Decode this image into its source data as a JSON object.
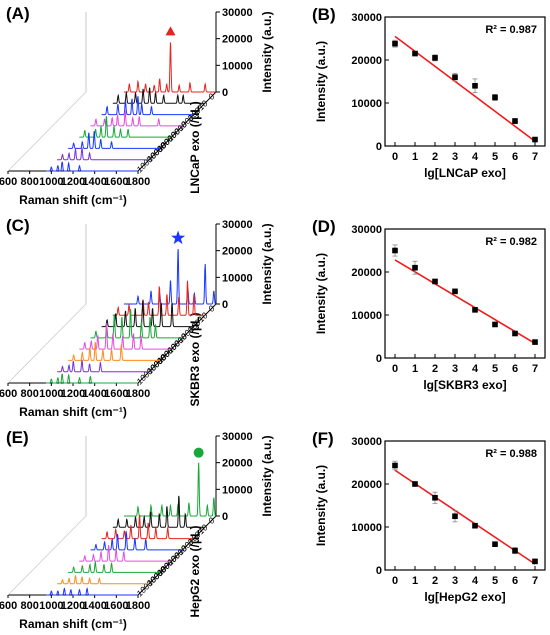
{
  "chart_data": [
    {
      "panel": "(A)",
      "type": "line",
      "xlabel": "Raman shift (cm⁻¹)",
      "ylabel": "Intensity (a.u.)",
      "zlabel": "LNCaP exo (/μL)",
      "x_ticks": [
        "600",
        "800",
        "1000",
        "1200",
        "1400",
        "1600",
        "1800"
      ],
      "xlim": [
        600,
        1800
      ],
      "y_ticks": [
        "0",
        "10000",
        "20000",
        "30000"
      ],
      "ylim": [
        0,
        30000
      ],
      "series": [
        {
          "name": "0",
          "color": "#e8231f",
          "peaks": [
            [
              1000,
              3000
            ],
            [
              1080,
              4000
            ],
            [
              1150,
              3000
            ],
            [
              1230,
              2500
            ],
            [
              1280,
              5000
            ],
            [
              1345,
              3000
            ],
            [
              1380,
              19000
            ],
            [
              1460,
              2500
            ],
            [
              1560,
              3500
            ],
            [
              1700,
              3000
            ]
          ]
        },
        {
          "name": "10",
          "color": "#111111",
          "peaks": [
            [
              1000,
              3000
            ],
            [
              1075,
              4000
            ],
            [
              1160,
              4000
            ],
            [
              1230,
              5500
            ],
            [
              1290,
              6000
            ],
            [
              1345,
              4000
            ],
            [
              1420,
              3000
            ],
            [
              1550,
              3000
            ],
            [
              1600,
              3000
            ]
          ]
        },
        {
          "name": "100",
          "color": "#1a36ff",
          "peaks": [
            [
              1000,
              3000
            ],
            [
              1100,
              4000
            ],
            [
              1170,
              5000
            ],
            [
              1230,
              6000
            ],
            [
              1285,
              7000
            ],
            [
              1320,
              4000
            ],
            [
              1410,
              3000
            ]
          ]
        },
        {
          "name": "1000",
          "color": "#e24de0",
          "peaks": [
            [
              1000,
              2500
            ],
            [
              1080,
              2500
            ],
            [
              1150,
              3000
            ],
            [
              1200,
              4000
            ],
            [
              1270,
              5500
            ],
            [
              1340,
              3000
            ],
            [
              1400,
              3500
            ],
            [
              1580,
              2500
            ]
          ]
        },
        {
          "name": "10000",
          "color": "#18a83a",
          "peaks": [
            [
              1000,
              2500
            ],
            [
              1100,
              3000
            ],
            [
              1150,
              4000
            ],
            [
              1200,
              8000
            ],
            [
              1270,
              4000
            ],
            [
              1330,
              3000
            ],
            [
              1400,
              3000
            ]
          ]
        },
        {
          "name": "100000",
          "color": "#1a36ff",
          "peaks": [
            [
              1000,
              2000
            ],
            [
              1080,
              2500
            ],
            [
              1140,
              6000
            ],
            [
              1190,
              6500
            ],
            [
              1250,
              3500
            ],
            [
              1350,
              2500
            ]
          ]
        },
        {
          "name": "1000000",
          "color": "#7b2fd8",
          "peaks": [
            [
              1000,
              2000
            ],
            [
              1060,
              2500
            ],
            [
              1120,
              4000
            ],
            [
              1180,
              4500
            ],
            [
              1250,
              2500
            ]
          ]
        },
        {
          "name": "10000000",
          "color": "#1a36ff",
          "peaks": [
            [
              1000,
              1500
            ],
            [
              1060,
              2000
            ],
            [
              1100,
              3500
            ],
            [
              1160,
              3000
            ],
            [
              1260,
              2000
            ]
          ]
        }
      ],
      "marker": {
        "shape": "triangle",
        "color": "#e8231f",
        "x": 1380
      }
    },
    {
      "panel": "(B)",
      "type": "scatter",
      "xlabel": "lg[LNCaP exo]",
      "ylabel": "Intensity (a.u.)",
      "annotation": "R² = 0.987",
      "x_ticks": [
        "0",
        "1",
        "2",
        "3",
        "4",
        "5",
        "6",
        "7"
      ],
      "xlim": [
        -0.5,
        7.5
      ],
      "y_ticks": [
        "0",
        "10000",
        "20000",
        "30000"
      ],
      "ylim": [
        0,
        30000
      ],
      "x": [
        0,
        1,
        2,
        3,
        4,
        5,
        6,
        7
      ],
      "y": [
        23800,
        21500,
        20500,
        16000,
        14000,
        11300,
        5800,
        1500
      ],
      "err": [
        800,
        500,
        700,
        900,
        1600,
        700,
        600,
        300
      ],
      "fit": {
        "x": [
          0,
          7
        ],
        "y": [
          25500,
          1100
        ]
      }
    },
    {
      "panel": "(C)",
      "type": "line",
      "xlabel": "Raman shift (cm⁻¹)",
      "ylabel": "Intensity (a.u.)",
      "zlabel": "SKBR3 exo (/μL)",
      "x_ticks": [
        "600",
        "800",
        "1000",
        "1200",
        "1400",
        "1600",
        "1800"
      ],
      "xlim": [
        600,
        1800
      ],
      "y_ticks": [
        "0",
        "10000",
        "20000",
        "30000"
      ],
      "ylim": [
        0,
        30000
      ],
      "series": [
        {
          "name": "0",
          "color": "#1a36ff",
          "peaks": [
            [
              1080,
              3000
            ],
            [
              1200,
              5000
            ],
            [
              1280,
              4000
            ],
            [
              1380,
              9000
            ],
            [
              1450,
              21000
            ],
            [
              1540,
              6000
            ],
            [
              1600,
              4000
            ],
            [
              1700,
              15000
            ],
            [
              1780,
              5000
            ]
          ]
        },
        {
          "name": "10",
          "color": "#e8231f",
          "peaks": [
            [
              1000,
              3000
            ],
            [
              1100,
              4000
            ],
            [
              1230,
              6000
            ],
            [
              1280,
              5000
            ],
            [
              1380,
              11000
            ],
            [
              1450,
              8000
            ],
            [
              1560,
              7000
            ],
            [
              1640,
              13000
            ],
            [
              1700,
              8000
            ]
          ]
        },
        {
          "name": "100",
          "color": "#111111",
          "peaks": [
            [
              1000,
              2500
            ],
            [
              1080,
              5000
            ],
            [
              1170,
              6000
            ],
            [
              1260,
              7000
            ],
            [
              1330,
              10000
            ],
            [
              1420,
              7000
            ],
            [
              1500,
              9000
            ],
            [
              1600,
              9000
            ]
          ]
        },
        {
          "name": "1000",
          "color": "#18a83a",
          "peaks": [
            [
              1000,
              2500
            ],
            [
              1100,
              4000
            ],
            [
              1170,
              9000
            ],
            [
              1240,
              8000
            ],
            [
              1320,
              11000
            ],
            [
              1420,
              6000
            ],
            [
              1500,
              8000
            ],
            [
              1550,
              5000
            ]
          ]
        },
        {
          "name": "10000",
          "color": "#e24de0",
          "peaks": [
            [
              1000,
              2500
            ],
            [
              1060,
              3000
            ],
            [
              1120,
              5000
            ],
            [
              1200,
              10000
            ],
            [
              1260,
              6000
            ],
            [
              1350,
              5000
            ],
            [
              1450,
              6000
            ],
            [
              1520,
              5000
            ]
          ]
        },
        {
          "name": "100000",
          "color": "#ff8a1a",
          "peaks": [
            [
              1000,
              2000
            ],
            [
              1080,
              3000
            ],
            [
              1150,
              5000
            ],
            [
              1200,
              7000
            ],
            [
              1270,
              4000
            ],
            [
              1350,
              4000
            ],
            [
              1440,
              6000
            ]
          ]
        },
        {
          "name": "1000000",
          "color": "#7b2fd8",
          "peaks": [
            [
              1000,
              2000
            ],
            [
              1060,
              2500
            ],
            [
              1100,
              4000
            ],
            [
              1180,
              4500
            ],
            [
              1250,
              3000
            ],
            [
              1350,
              3500
            ]
          ]
        },
        {
          "name": "10000000",
          "color": "#18a83a",
          "peaks": [
            [
              1000,
              1500
            ],
            [
              1060,
              2000
            ],
            [
              1100,
              3500
            ],
            [
              1160,
              3000
            ],
            [
              1260,
              2000
            ],
            [
              1360,
              2500
            ]
          ]
        }
      ],
      "marker": {
        "shape": "star",
        "color": "#1a36ff",
        "x": 1450
      }
    },
    {
      "panel": "(D)",
      "type": "scatter",
      "xlabel": "lg[SKBR3 exo]",
      "ylabel": "Intensity (a.u.)",
      "annotation": "R² = 0.982",
      "x_ticks": [
        "0",
        "1",
        "2",
        "3",
        "4",
        "5",
        "6",
        "7"
      ],
      "xlim": [
        -0.5,
        7.5
      ],
      "y_ticks": [
        "0",
        "10000",
        "20000",
        "30000"
      ],
      "ylim": [
        0,
        30000
      ],
      "x": [
        0,
        1,
        2,
        3,
        4,
        5,
        6,
        7
      ],
      "y": [
        25000,
        21000,
        17800,
        15500,
        11200,
        7800,
        5700,
        3700
      ],
      "err": [
        1300,
        1500,
        400,
        400,
        400,
        300,
        300,
        200
      ],
      "fit": {
        "x": [
          0,
          7
        ],
        "y": [
          22800,
          3400
        ]
      }
    },
    {
      "panel": "(E)",
      "type": "line",
      "xlabel": "Raman shift (cm⁻¹)",
      "ylabel": "Intensity (a.u.)",
      "zlabel": "HepG2 exo (/μL)",
      "x_ticks": [
        "600",
        "800",
        "1000",
        "1200",
        "1400",
        "1600",
        "1800"
      ],
      "xlim": [
        600,
        1800
      ],
      "y_ticks": [
        "0",
        "10000",
        "20000",
        "30000"
      ],
      "ylim": [
        0,
        30000
      ],
      "series": [
        {
          "name": "0",
          "color": "#18a83a",
          "peaks": [
            [
              1080,
              3500
            ],
            [
              1200,
              4000
            ],
            [
              1300,
              4000
            ],
            [
              1380,
              4000
            ],
            [
              1450,
              4500
            ],
            [
              1550,
              5000
            ],
            [
              1640,
              20000
            ],
            [
              1720,
              4000
            ],
            [
              1780,
              7000
            ]
          ]
        },
        {
          "name": "10",
          "color": "#111111",
          "peaks": [
            [
              1000,
              3000
            ],
            [
              1080,
              3000
            ],
            [
              1160,
              4000
            ],
            [
              1240,
              4000
            ],
            [
              1300,
              6000
            ],
            [
              1380,
              5000
            ],
            [
              1450,
              8000
            ],
            [
              1560,
              12000
            ],
            [
              1620,
              5000
            ]
          ]
        },
        {
          "name": "100",
          "color": "#e8231f",
          "peaks": [
            [
              1000,
              2500
            ],
            [
              1080,
              3500
            ],
            [
              1160,
              3000
            ],
            [
              1220,
              5000
            ],
            [
              1300,
              9000
            ],
            [
              1380,
              6000
            ],
            [
              1450,
              4000
            ],
            [
              1560,
              4000
            ]
          ]
        },
        {
          "name": "1000",
          "color": "#1a36ff",
          "peaks": [
            [
              1000,
              2000
            ],
            [
              1080,
              3000
            ],
            [
              1150,
              4000
            ],
            [
              1200,
              6000
            ],
            [
              1280,
              7000
            ],
            [
              1360,
              4500
            ],
            [
              1460,
              4000
            ]
          ]
        },
        {
          "name": "10000",
          "color": "#e24de0",
          "peaks": [
            [
              1000,
              2000
            ],
            [
              1080,
              2500
            ],
            [
              1150,
              3500
            ],
            [
              1220,
              6000
            ],
            [
              1290,
              4500
            ],
            [
              1360,
              3500
            ]
          ]
        },
        {
          "name": "100000",
          "color": "#18a83a",
          "peaks": [
            [
              1000,
              2000
            ],
            [
              1080,
              2500
            ],
            [
              1150,
              3000
            ],
            [
              1200,
              4000
            ],
            [
              1280,
              3000
            ],
            [
              1350,
              3500
            ]
          ]
        },
        {
          "name": "1000000",
          "color": "#ff8a1a",
          "peaks": [
            [
              1000,
              1500
            ],
            [
              1060,
              2000
            ],
            [
              1120,
              3000
            ],
            [
              1180,
              2500
            ],
            [
              1250,
              2000
            ],
            [
              1340,
              2000
            ]
          ]
        },
        {
          "name": "10000000",
          "color": "#1a36ff",
          "peaks": [
            [
              1000,
              1500
            ],
            [
              1060,
              1500
            ],
            [
              1120,
              2500
            ],
            [
              1180,
              2000
            ],
            [
              1260,
              2000
            ],
            [
              1330,
              2500
            ]
          ]
        }
      ],
      "marker": {
        "shape": "circle",
        "color": "#18a83a",
        "x": 1640
      }
    },
    {
      "panel": "(F)",
      "type": "scatter",
      "xlabel": "lg[HepG2 exo]",
      "ylabel": "Intensity (a.u.)",
      "annotation": "R² = 0.988",
      "x_ticks": [
        "0",
        "1",
        "2",
        "3",
        "4",
        "5",
        "6",
        "7"
      ],
      "xlim": [
        -0.5,
        7.5
      ],
      "y_ticks": [
        "0",
        "10000",
        "20000",
        "30000"
      ],
      "ylim": [
        0,
        30000
      ],
      "x": [
        0,
        1,
        2,
        3,
        4,
        5,
        6,
        7
      ],
      "y": [
        24300,
        20000,
        16800,
        12500,
        10300,
        6000,
        4500,
        2000
      ],
      "err": [
        1000,
        500,
        1300,
        1300,
        400,
        500,
        700,
        400
      ],
      "fit": {
        "x": [
          0,
          7
        ],
        "y": [
          23200,
          1400
        ]
      }
    }
  ]
}
